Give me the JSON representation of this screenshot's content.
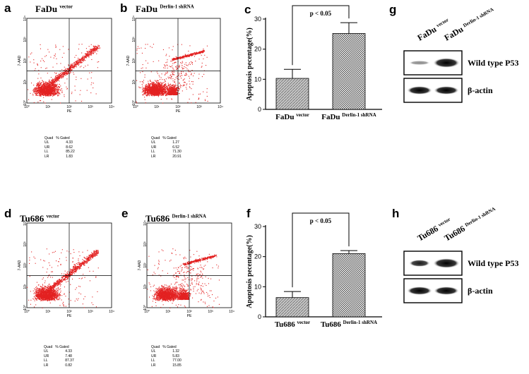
{
  "panels": {
    "a": {
      "letter": "a",
      "title_main": "FaDu",
      "title_sup": "vector",
      "stats_header": [
        "Quad",
        "% Gated"
      ],
      "stats": [
        [
          "UL",
          "4.33"
        ],
        [
          "UR",
          "8.62"
        ],
        [
          "LL",
          "85.22"
        ],
        [
          "LR",
          "1.83"
        ]
      ]
    },
    "b": {
      "letter": "b",
      "title_main": "FaDu",
      "title_sup": "Derlin-1 shRNA",
      "stats_header": [
        "Quad",
        "% Gated"
      ],
      "stats": [
        [
          "UL",
          "1.27"
        ],
        [
          "UR",
          "6.52"
        ],
        [
          "LL",
          "71.30"
        ],
        [
          "LR",
          "20.91"
        ]
      ]
    },
    "d": {
      "letter": "d",
      "title_main": "Tu686",
      "title_sup": "vector",
      "stats_header": [
        "Quad",
        "% Gated"
      ],
      "stats": [
        [
          "UL",
          "4.33"
        ],
        [
          "UR",
          "7.48"
        ],
        [
          "LL",
          "87.37"
        ],
        [
          "LR",
          "0.82"
        ]
      ]
    },
    "e": {
      "letter": "e",
      "title_main": "Tu686",
      "title_sup": "Derlin-1 shRNA",
      "stats_header": [
        "Quad",
        "% Gated"
      ],
      "stats": [
        [
          "UL",
          "1.32"
        ],
        [
          "UR",
          "5.83"
        ],
        [
          "LL",
          "77.00"
        ],
        [
          "LR",
          "15.85"
        ]
      ]
    },
    "c": {
      "letter": "c"
    },
    "f": {
      "letter": "f"
    },
    "g": {
      "letter": "g",
      "lane1_main": "FaDu",
      "lane1_sup": "vector",
      "lane2_main": "FaDu",
      "lane2_sup": "Derlin-1 shRNA",
      "band1": "Wild type P53",
      "band2": "β-actin"
    },
    "h": {
      "letter": "h",
      "lane1_main": "Tu686",
      "lane1_sup": "vector",
      "lane2_main": "Tu686",
      "lane2_sup": "Derlin-1 shRNA",
      "band1": "Wild type P53",
      "band2": "β-actin"
    }
  },
  "flow_axes": {
    "xlabel": "PE",
    "ylabel": "7-AAD",
    "ticks": [
      "10⁰",
      "10¹",
      "10²",
      "10³",
      "10⁴"
    ]
  },
  "colors": {
    "dots": "#e32222",
    "bar_fill_pattern": "#7a7a7a"
  },
  "chart_data": [
    {
      "type": "bar",
      "panel": "c",
      "categories": [
        "FaDu vector",
        "FaDu Derlin-1 shRNA"
      ],
      "cat_main": [
        "FaDu",
        "FaDu"
      ],
      "cat_sup": [
        "vector",
        "Derlin-1 shRNA"
      ],
      "values": [
        10.3,
        25.2
      ],
      "errors": [
        3.0,
        3.6
      ],
      "ylim": [
        0,
        30
      ],
      "yticks": [
        "0",
        "10",
        "20",
        "30"
      ],
      "ylabel": "Apoptosis pecentage(%)",
      "annotation": "p < 0.05"
    },
    {
      "type": "bar",
      "panel": "f",
      "categories": [
        "Tu686 vector",
        "Tu686 Derlin-1 shRNA"
      ],
      "cat_main": [
        "Tu686",
        "Tu686"
      ],
      "cat_sup": [
        "vector",
        "Derlin-1 shRNA"
      ],
      "values": [
        6.4,
        21.0
      ],
      "errors": [
        2.0,
        1.0
      ],
      "ylim": [
        0,
        30
      ],
      "yticks": [
        "0",
        "10",
        "20",
        "30"
      ],
      "ylabel": "Apoptosis pecentage(%)",
      "annotation": "p < 0.05"
    }
  ]
}
